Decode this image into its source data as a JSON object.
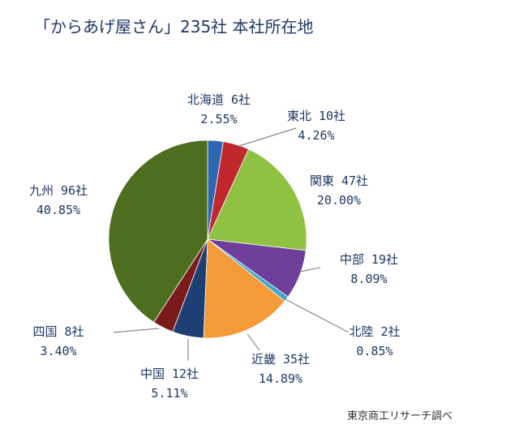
{
  "chart_data": {
    "type": "pie",
    "title": "「からあげ屋さん」235社 本社所在地",
    "slices": [
      {
        "region": "北海道",
        "count_label": "6社",
        "count": 6,
        "percent": 2.55,
        "percent_label": "2.55%",
        "color": "#2e67b1"
      },
      {
        "region": "東北",
        "count_label": "10社",
        "count": 10,
        "percent": 4.26,
        "percent_label": "4.26%",
        "color": "#c0282d"
      },
      {
        "region": "関東",
        "count_label": "47社",
        "count": 47,
        "percent": 20.0,
        "percent_label": "20.00%",
        "color": "#8fc143"
      },
      {
        "region": "中部",
        "count_label": "19社",
        "count": 19,
        "percent": 8.09,
        "percent_label": "8.09%",
        "color": "#6d3f9a"
      },
      {
        "region": "北陸",
        "count_label": "2社",
        "count": 2,
        "percent": 0.85,
        "percent_label": "0.85%",
        "color": "#39a8c6"
      },
      {
        "region": "近畿",
        "count_label": "35社",
        "count": 35,
        "percent": 14.89,
        "percent_label": "14.89%",
        "color": "#f59a38"
      },
      {
        "region": "中国",
        "count_label": "12社",
        "count": 12,
        "percent": 5.11,
        "percent_label": "5.11%",
        "color": "#1e3f73"
      },
      {
        "region": "四国",
        "count_label": "8社",
        "count": 8,
        "percent": 3.4,
        "percent_label": "3.40%",
        "color": "#7a1a1a"
      },
      {
        "region": "九州",
        "count_label": "96社",
        "count": 96,
        "percent": 40.85,
        "percent_label": "40.85%",
        "color": "#4e6e1f"
      }
    ]
  },
  "source": "東京商工リサーチ調べ"
}
